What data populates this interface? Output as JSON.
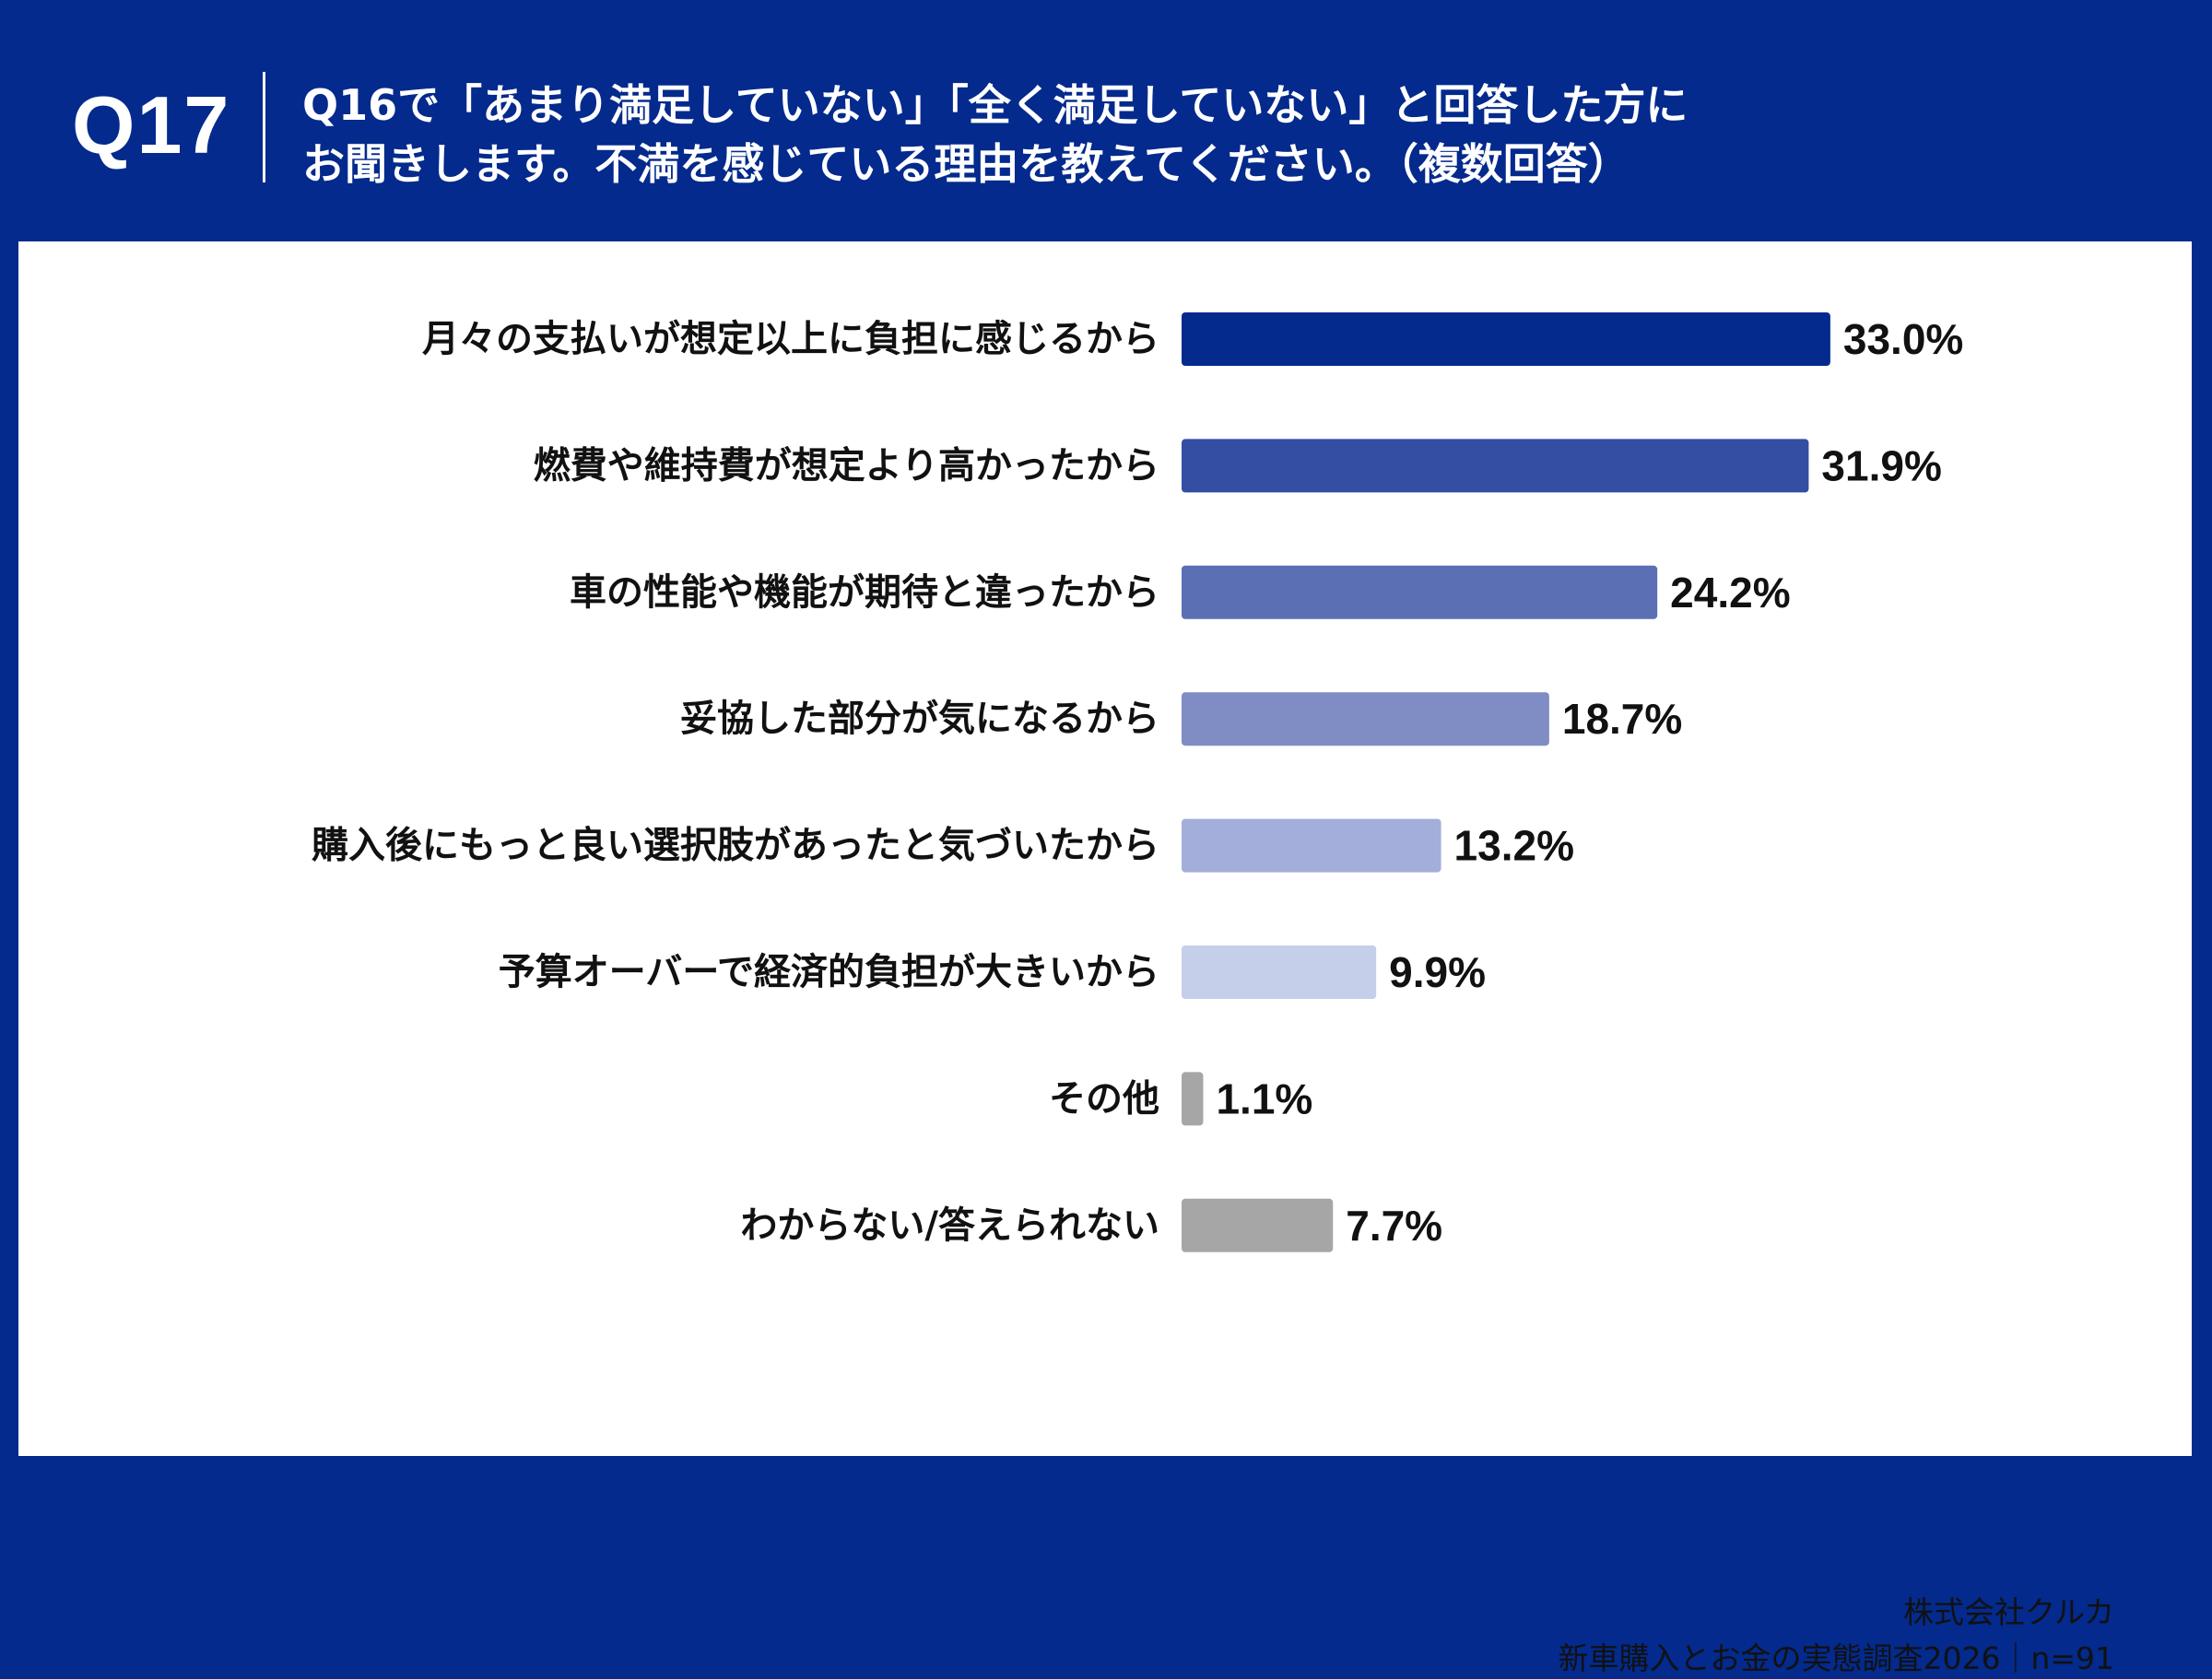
{
  "header": {
    "question_number": "Q17",
    "question_line1": "Q16で「あまり満足していない」「全く満足していない」と回答した方に",
    "question_line2": "お聞きします。不満を感じている理由を教えてください。（複数回答）"
  },
  "footer": {
    "company": "株式会社クルカ",
    "survey": "新車購入とお金の実態調査2026｜n=91"
  },
  "chart_data": {
    "type": "bar",
    "orientation": "horizontal",
    "title": "",
    "xlabel": "",
    "ylabel": "",
    "unit": "%",
    "xlim": [
      0,
      33
    ],
    "grid": false,
    "legend": "none",
    "categories": [
      "月々の支払いが想定以上に負担に感じるから",
      "燃費や維持費が想定より高かったから",
      "車の性能や機能が期待と違ったから",
      "妥協した部分が気になるから",
      "購入後にもっと良い選択肢があったと気づいたから",
      "予算オーバーで経済的負担が大きいから",
      "その他",
      "わからない/答えられない"
    ],
    "values": [
      33.0,
      31.9,
      24.2,
      18.7,
      13.2,
      9.9,
      1.1,
      7.7
    ],
    "value_labels": [
      "33.0%",
      "31.9%",
      "24.2%",
      "18.7%",
      "13.2%",
      "9.9%",
      "1.1%",
      "7.7%"
    ],
    "colors": [
      "#032a8c",
      "#334ea2",
      "#5b6fb5",
      "#7f8dc4",
      "#a3afda",
      "#c5cfea",
      "#a6a6a6",
      "#a6a6a6"
    ]
  }
}
